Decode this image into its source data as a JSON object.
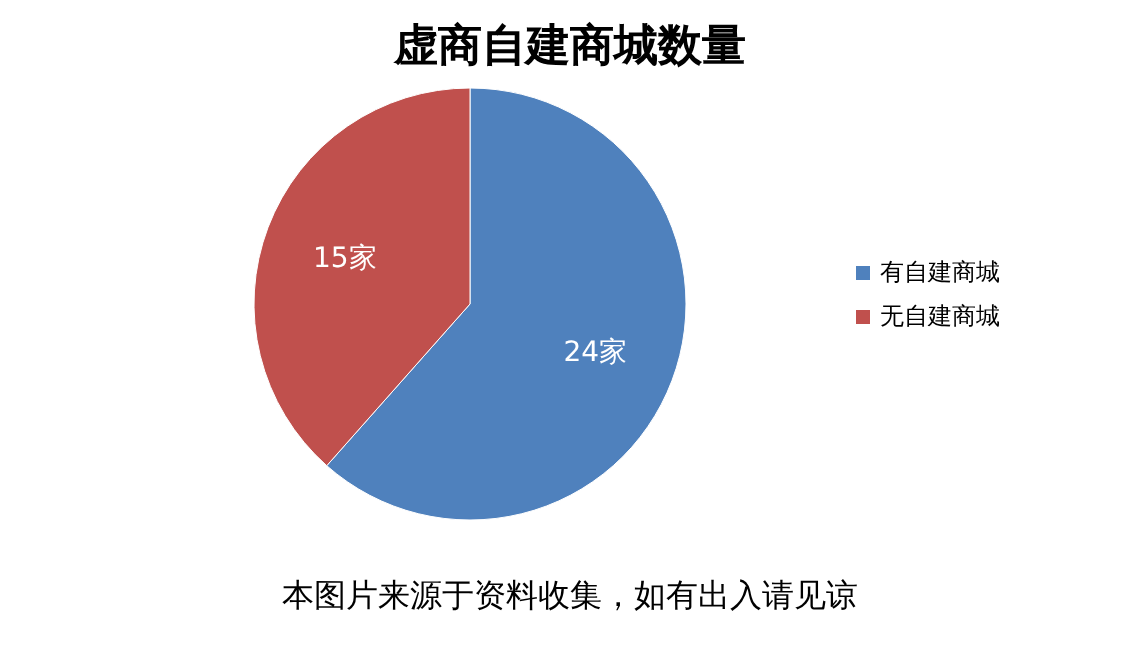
{
  "chart_data": {
    "type": "pie",
    "title": "虚商自建商城数量",
    "categories": [
      "有自建商城",
      "无自建商城"
    ],
    "values": [
      24,
      15
    ],
    "colors": [
      "#4f81bd",
      "#c0504d"
    ],
    "value_labels": [
      "24家",
      "15家"
    ],
    "legend": "right",
    "annotations": [
      "本图片来源于资料收集，如有出入请见谅"
    ]
  }
}
